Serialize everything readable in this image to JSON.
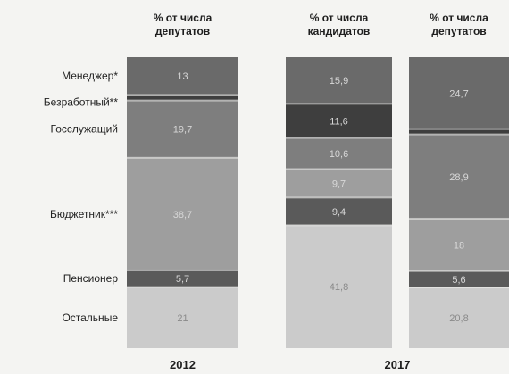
{
  "chart_data": {
    "type": "bar",
    "stacked": true,
    "orientation": "vertical-stacked-100",
    "categories": [
      "Менеджер*",
      "Безработный**",
      "Госслужащий",
      "Бюджетник***",
      "Пенсионер",
      "Остальные"
    ],
    "columns": [
      {
        "header": "% от числа\nдепутатов",
        "group": "2012",
        "values": [
          13,
          1.9,
          19.7,
          38.7,
          5.7,
          21
        ],
        "labels": [
          "13",
          "",
          "19,7",
          "38,7",
          "5,7",
          "21"
        ]
      },
      {
        "header": "% от числа\nкандидатов",
        "group": "2017",
        "values": [
          15.9,
          11.6,
          10.6,
          9.7,
          9.4,
          41.8
        ],
        "labels": [
          "15,9",
          "11,6",
          "10,6",
          "9,7",
          "9,4",
          "41,8"
        ]
      },
      {
        "header": "% от числа\nдепутатов",
        "group": "2017",
        "values": [
          24.7,
          1.8,
          28.9,
          18,
          5.6,
          20.8
        ],
        "labels": [
          "24,7",
          "",
          "28,9",
          "18",
          "5,6",
          "20,8"
        ]
      }
    ],
    "colors": [
      "#6a6a6a",
      "#3e3e3e",
      "#7e7e7e",
      "#9e9e9e",
      "#5a5a5a",
      "#cbcbcb"
    ],
    "group_labels": [
      "2012",
      "2017"
    ],
    "ylim": [
      0,
      100
    ]
  }
}
